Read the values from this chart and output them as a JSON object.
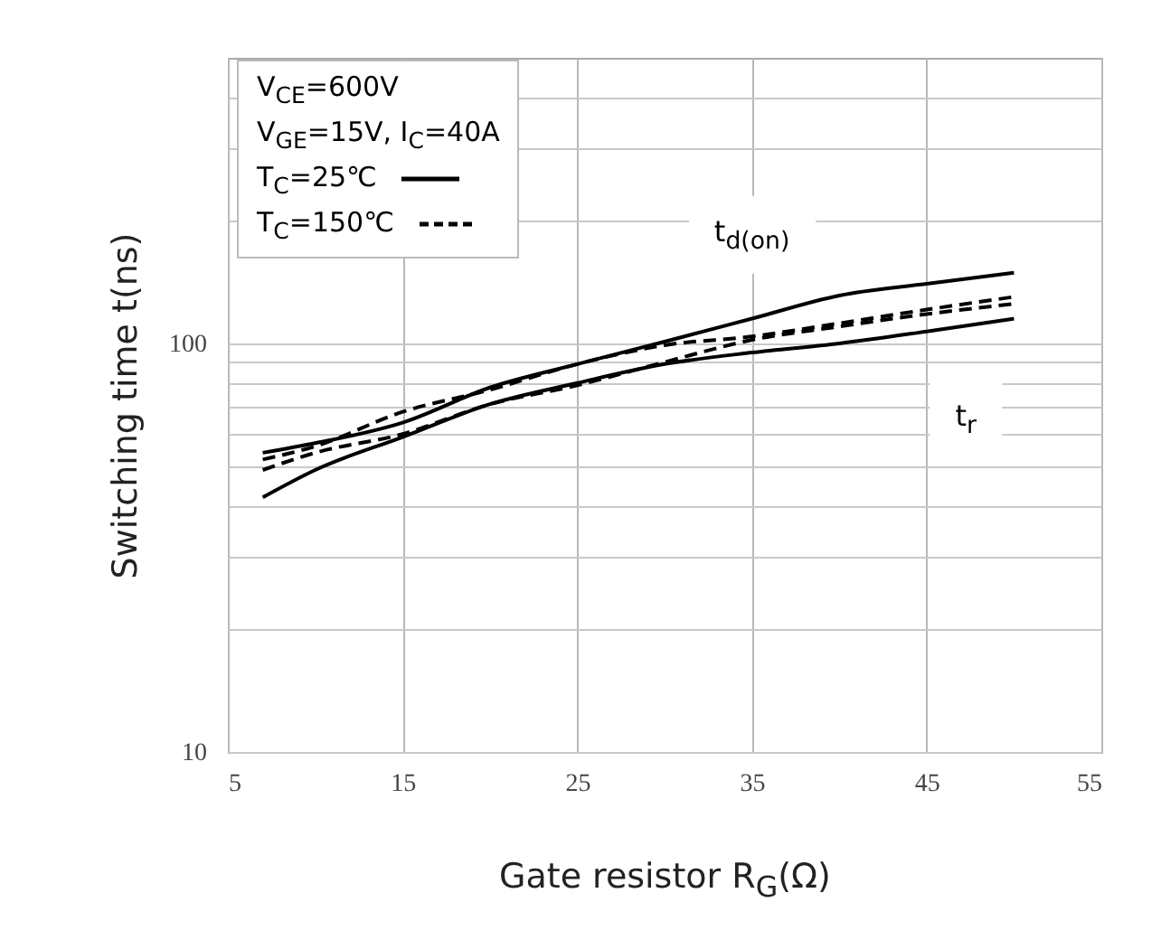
{
  "chart_data": {
    "type": "line",
    "xlabel": "Gate resistor R$_{G}$(Ω)",
    "ylabel": "Switching time t(ns)",
    "x": [
      7,
      10,
      15,
      20,
      25,
      30,
      35,
      40,
      45,
      50
    ],
    "series": [
      {
        "name": "T$_{C}$=25℃",
        "color": "#000000",
        "line_style": "solid",
        "values": [
          54,
          57,
          64,
          78,
          89,
          101,
          115,
          131,
          140,
          149
        ]
      },
      {
        "color": "#000000",
        "line_style": "solid",
        "values": [
          42,
          49,
          59,
          71,
          80,
          89,
          95,
          100,
          107,
          115
        ]
      },
      {
        "name": "T$_{C}$=150℃",
        "color": "#000000",
        "line_style": "dashed",
        "values": [
          52,
          56,
          68,
          77,
          89,
          99,
          104,
          112,
          121,
          130
        ]
      },
      {
        "color": "#000000",
        "line_style": "dashed",
        "values": [
          49,
          54,
          60,
          71,
          79,
          90,
          102,
          110,
          118,
          125
        ]
      }
    ],
    "annotations": [
      "V$_{CE}$=600V",
      "V$_{GE}$=15V, I$_{C}$=40A",
      "t$_{d(on)}$",
      "t$_{r}$"
    ],
    "xlim": [
      5,
      55
    ],
    "xticks": [
      5,
      15,
      25,
      35,
      45,
      55
    ],
    "ylim": [
      10,
      500
    ],
    "log": "y",
    "yticks": [
      10,
      {
        "value": 20,
        "label": null
      },
      {
        "value": 30,
        "label": null
      },
      {
        "value": 40,
        "label": null
      },
      {
        "value": 50,
        "label": null
      },
      {
        "value": 60,
        "label": null
      },
      {
        "value": 70,
        "label": null
      },
      {
        "value": 80,
        "label": null
      },
      {
        "value": 90,
        "label": null
      },
      100,
      {
        "value": 200,
        "label": null
      },
      {
        "value": 300,
        "label": null
      },
      {
        "value": 400,
        "label": null
      }
    ],
    "grid": true,
    "legend": "top left"
  }
}
